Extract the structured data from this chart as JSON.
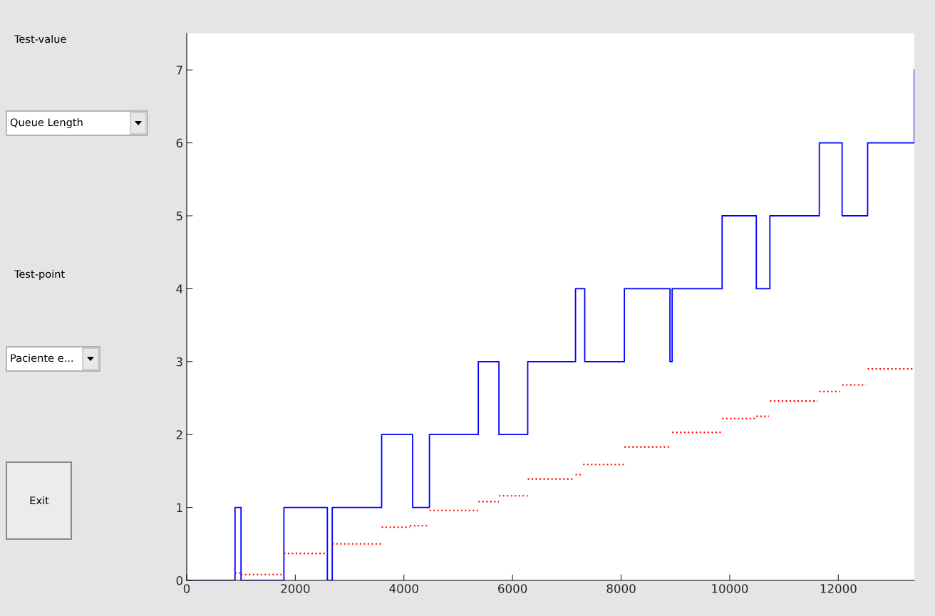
{
  "chart_data": {
    "type": "step",
    "xlim": [
      0,
      13400
    ],
    "ylim": [
      0,
      7.5
    ],
    "xticks": [
      0,
      2000,
      4000,
      6000,
      8000,
      10000,
      12000
    ],
    "yticks": [
      0,
      1,
      2,
      3,
      4,
      5,
      6,
      7
    ],
    "grid": false,
    "legend": false,
    "annotations": [
      "Test-value",
      "Queue Length",
      "Test-point",
      "Paciente e...",
      "Exit"
    ],
    "series": [
      {
        "color": "#0000ff",
        "line_style": "solid",
        "x": [
          0,
          890,
          1000,
          1790,
          2590,
          2680,
          3590,
          4160,
          4470,
          5370,
          5750,
          6280,
          7160,
          7330,
          8060,
          8900,
          8940,
          9860,
          10490,
          10740,
          11650,
          12070,
          12540,
          13400
        ],
        "values": [
          0,
          1,
          0,
          1,
          0,
          1,
          2,
          1,
          2,
          3,
          2,
          3,
          4,
          3,
          4,
          3,
          4,
          5,
          4,
          5,
          6,
          5,
          6,
          7
        ]
      },
      {
        "type": "line",
        "color": "#ff0000",
        "line_style": "dotted",
        "x": [
          0,
          890,
          null,
          890,
          1000,
          null,
          1000,
          1790,
          null,
          1790,
          2590,
          null,
          2680,
          3590,
          null,
          3590,
          4110,
          null,
          4110,
          4440,
          null,
          4470,
          5370,
          null,
          5370,
          5750,
          null,
          5750,
          6280,
          null,
          6280,
          7130,
          null,
          7160,
          7260,
          null,
          7300,
          8060,
          null,
          8060,
          8900,
          null,
          8940,
          9860,
          null,
          9860,
          10480,
          null,
          10490,
          10720,
          null,
          10740,
          11620,
          null,
          11650,
          12030,
          null,
          12070,
          12510,
          null,
          12540,
          13400
        ],
        "values": [
          0,
          0,
          null,
          0.1,
          0.1,
          null,
          0.08,
          0.08,
          null,
          0.37,
          0.37,
          null,
          0.5,
          0.5,
          null,
          0.73,
          0.73,
          null,
          0.75,
          0.75,
          null,
          0.96,
          0.96,
          null,
          1.08,
          1.08,
          null,
          1.16,
          1.16,
          null,
          1.39,
          1.39,
          null,
          1.45,
          1.45,
          null,
          1.59,
          1.59,
          null,
          1.83,
          1.83,
          null,
          2.03,
          2.03,
          null,
          2.22,
          2.22,
          null,
          2.25,
          2.25,
          null,
          2.46,
          2.46,
          null,
          2.59,
          2.59,
          null,
          2.68,
          2.68,
          null,
          2.9,
          2.9
        ]
      }
    ]
  }
}
